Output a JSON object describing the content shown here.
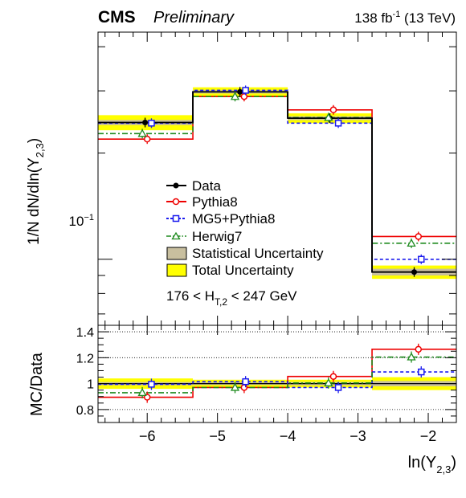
{
  "header": {
    "experiment": "CMS",
    "status": "Preliminary",
    "lumi_value": "138 fb",
    "lumi_exp": "-1",
    "lumi_energy": " (13 TeV)"
  },
  "legend": {
    "data": "Data",
    "pythia8": "Pythia8",
    "mg5": "MG5+Pythia8",
    "herwig7": "Herwig7",
    "stat": "Statistical Uncertainty",
    "total": "Total Uncertainty"
  },
  "cut_label": {
    "lo": "176 < H",
    "sub": "T,2",
    "hi": " < 247 GeV"
  },
  "axes": {
    "top_ylabel_main": "1/N dN/dln(Y",
    "top_ylabel_sub": "2,3",
    "top_ylabel_close": ")",
    "bottom_ylabel": "MC/Data",
    "xlabel_main": "ln(Y",
    "xlabel_sub": "2,3",
    "xlabel_close": ")",
    "top_tick_label_base": "10",
    "top_tick_label_exp": "−1"
  },
  "colors": {
    "data": "#000000",
    "pythia8": "#ee0000",
    "mg5": "#1a1aee",
    "herwig7": "#1e8a1e",
    "stat": "#c8bf9f",
    "total": "#ffff00"
  },
  "chart_data": [
    {
      "type": "line",
      "panel": "distribution",
      "ylabel": "1/N dN/dln(Y2,3)",
      "log_y": true,
      "ylim": [
        0.065,
        0.44
      ],
      "xlim": [
        -6.7,
        -1.6
      ],
      "bin_edges": [
        -6.7,
        -5.35,
        -4.0,
        -2.8,
        -1.6
      ],
      "series": [
        {
          "name": "Data",
          "values": [
            0.244,
            0.298,
            0.251,
            0.092
          ],
          "marker_x": [
            -6.03,
            -4.68,
            -3.4,
            -2.2
          ],
          "stat": [
            0.004,
            0.003,
            0.003,
            0.002
          ],
          "total": [
            0.012,
            0.009,
            0.008,
            0.004
          ]
        },
        {
          "name": "Pythia8",
          "values": [
            0.219,
            0.289,
            0.265,
            0.116
          ],
          "marker_x": [
            -6.0,
            -4.62,
            -3.35,
            -2.14
          ]
        },
        {
          "name": "MG5+Pythia8",
          "values": [
            0.243,
            0.301,
            0.243,
            0.1
          ],
          "marker_x": [
            -5.94,
            -4.6,
            -3.28,
            -2.1
          ]
        },
        {
          "name": "Herwig7",
          "values": [
            0.227,
            0.289,
            0.252,
            0.111
          ],
          "marker_x": [
            -6.07,
            -4.75,
            -3.42,
            -2.24
          ]
        }
      ]
    },
    {
      "type": "line",
      "panel": "ratio",
      "ylabel": "MC/Data",
      "xlabel": "ln(Y2,3)",
      "ylim": [
        0.7,
        1.45
      ],
      "yticks": [
        0.8,
        1,
        1.2,
        1.4
      ],
      "xticks": [
        -6,
        -5,
        -4,
        -3,
        -2
      ],
      "grid": "dotted at 0.8, 1.2, 1.4",
      "bin_edges": [
        -6.7,
        -5.35,
        -4.0,
        -2.8,
        -1.6
      ],
      "stat_band": [
        0.012,
        0.01,
        0.012,
        0.02
      ],
      "total_band": [
        0.04,
        0.03,
        0.03,
        0.05
      ],
      "series": [
        {
          "name": "Pythia8",
          "values": [
            0.895,
            0.97,
            1.055,
            1.265
          ],
          "marker_x": [
            -6.0,
            -4.62,
            -3.35,
            -2.14
          ]
        },
        {
          "name": "MG5+Pythia8",
          "values": [
            0.995,
            1.015,
            0.97,
            1.09
          ],
          "marker_x": [
            -5.94,
            -4.6,
            -3.28,
            -2.1
          ]
        },
        {
          "name": "Herwig7",
          "values": [
            0.93,
            0.97,
            1.005,
            1.205
          ],
          "marker_x": [
            -6.07,
            -4.75,
            -3.42,
            -2.24
          ]
        }
      ]
    }
  ]
}
